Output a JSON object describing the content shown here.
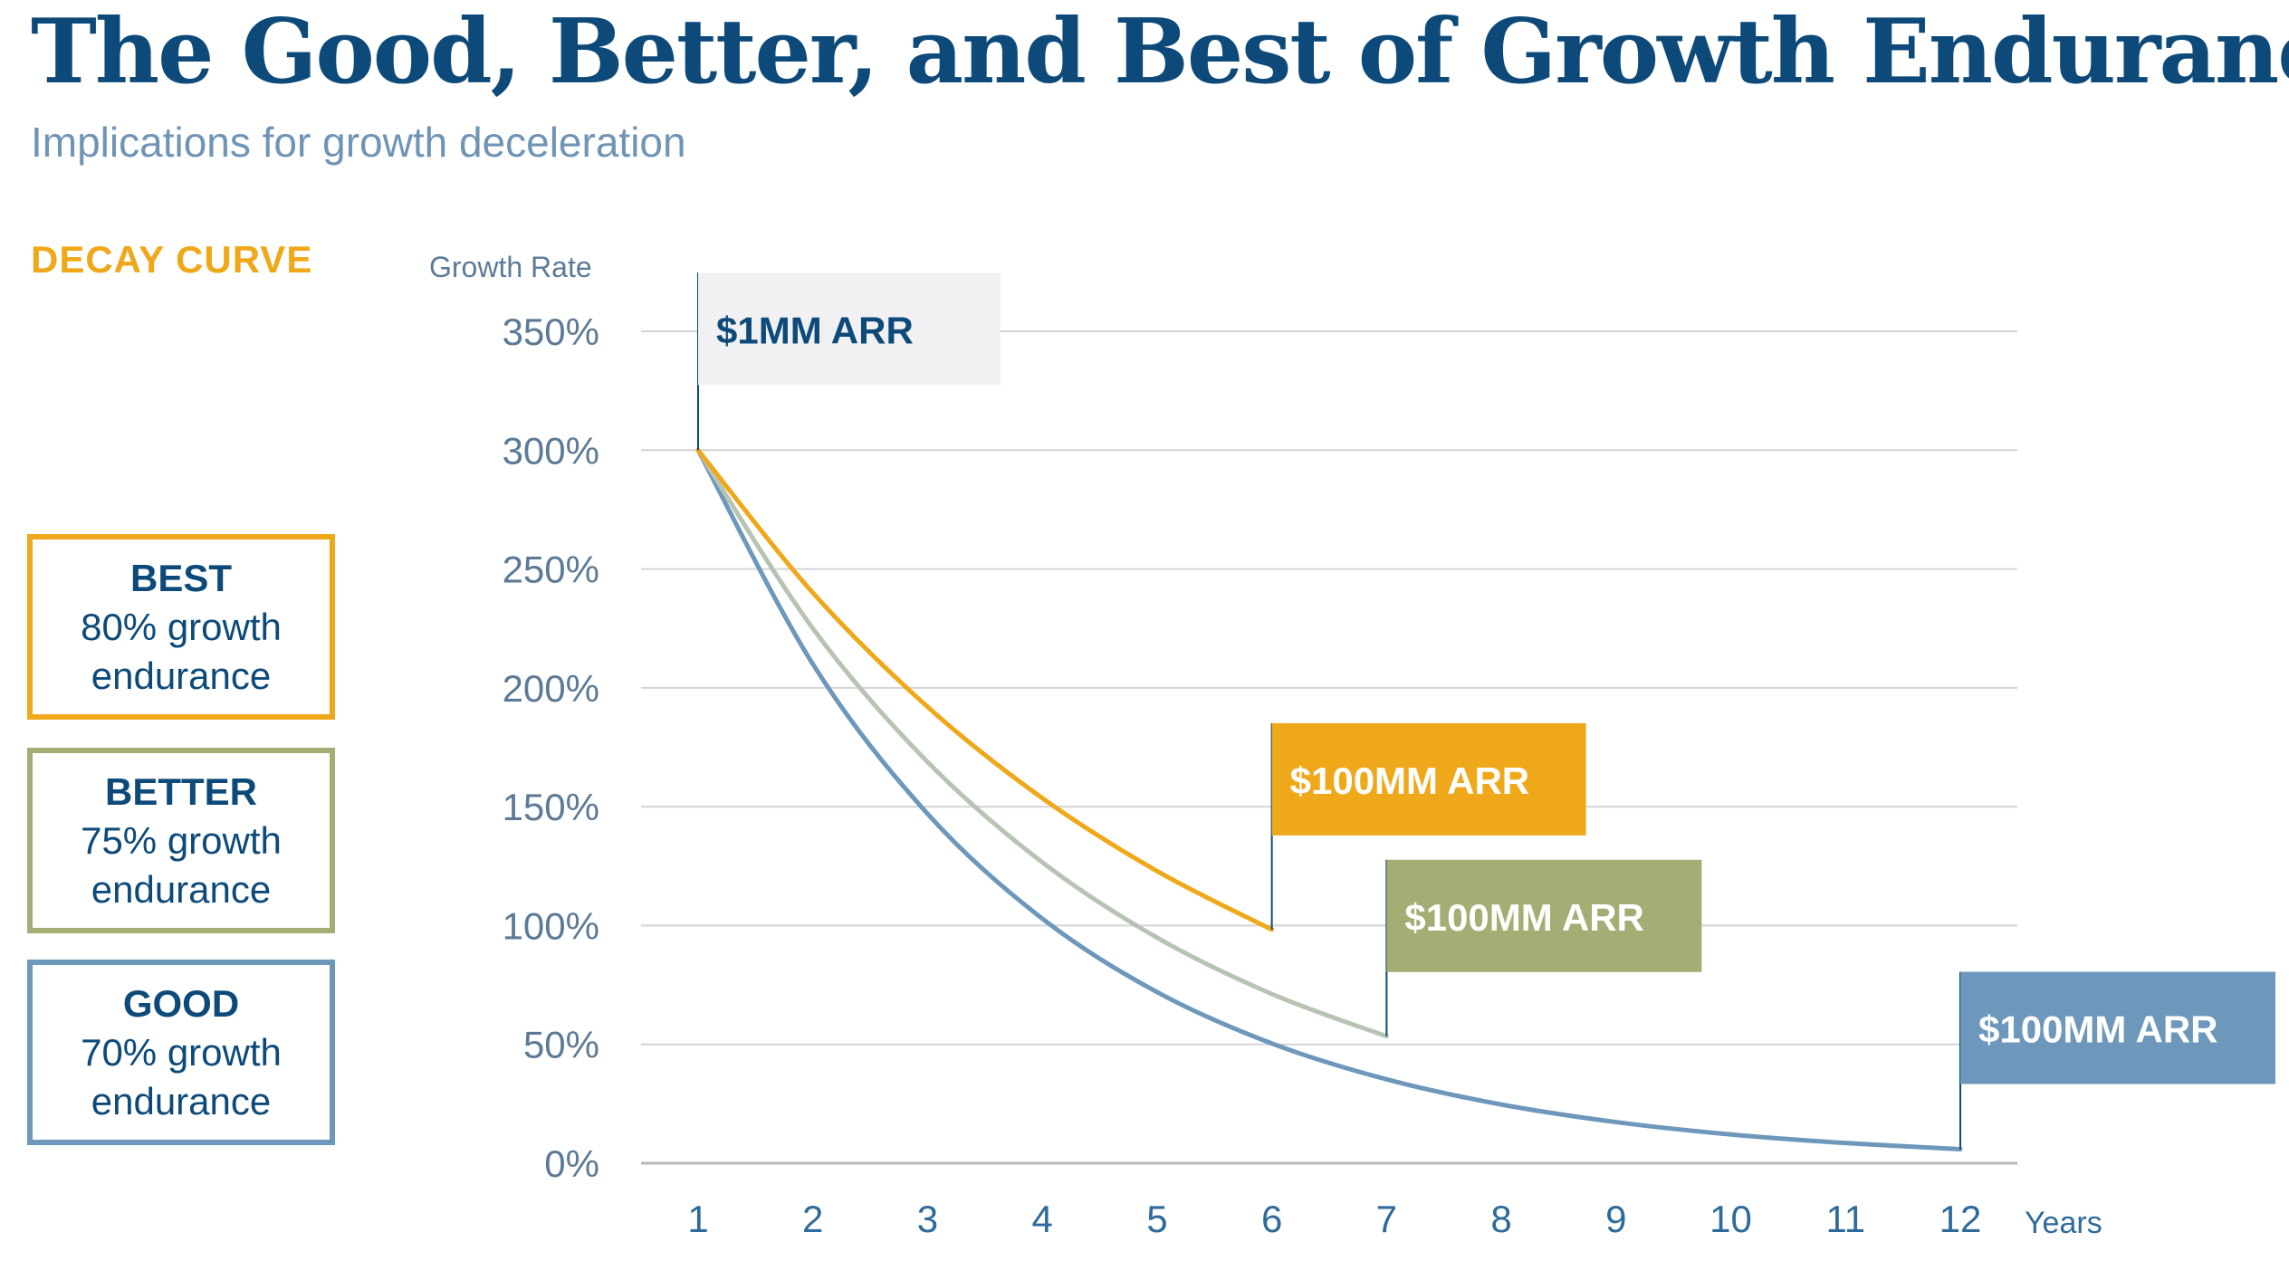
{
  "title": "The Good, Better, and Best of Growth Endurance",
  "subtitle": "Implications for growth deceleration",
  "decay_label": "DECAY CURVE",
  "legend": [
    {
      "name": "BEST",
      "line1": "80% growth",
      "line2": "endurance",
      "color": "#efa81a"
    },
    {
      "name": "BETTER",
      "line1": "75% growth",
      "line2": "endurance",
      "color": "#a3ad74"
    },
    {
      "name": "GOOD",
      "line1": "70% growth",
      "line2": "endurance",
      "color": "#6d98bb"
    }
  ],
  "chart_data": {
    "type": "line",
    "ylabel": "Growth Rate",
    "xlabel": "Years",
    "y_ticks": [
      "0%",
      "50%",
      "100%",
      "150%",
      "200%",
      "250%",
      "300%",
      "350%"
    ],
    "x_ticks": [
      "1",
      "2",
      "3",
      "4",
      "5",
      "6",
      "7",
      "8",
      "9",
      "10",
      "11",
      "12"
    ],
    "ylim": [
      0,
      350
    ],
    "xlim": [
      1,
      12
    ],
    "grid": true,
    "series": [
      {
        "name": "BEST",
        "color": "#efa81a",
        "x": [
          1,
          2,
          3,
          4,
          5,
          6
        ],
        "y": [
          300,
          240,
          192,
          153.6,
          122.9,
          98.3
        ]
      },
      {
        "name": "BETTER",
        "color": "#b7c4b4",
        "x": [
          1,
          2,
          3,
          4,
          5,
          6,
          7
        ],
        "y": [
          300,
          225,
          168.8,
          126.6,
          94.9,
          71.2,
          53.4
        ]
      },
      {
        "name": "GOOD",
        "color": "#6d98bb",
        "x": [
          1,
          2,
          3,
          4,
          5,
          6,
          7,
          8,
          9,
          10,
          11,
          12
        ],
        "y": [
          300,
          210,
          147,
          102.9,
          72,
          50.4,
          35.3,
          24.7,
          17.3,
          12.1,
          8.5,
          5.9
        ]
      }
    ],
    "annotations": [
      {
        "label": "$1MM ARR",
        "x": 1,
        "y": 300,
        "bg": "#f1f1f3",
        "fg": "#0d4a79"
      },
      {
        "label": "$100MM ARR",
        "x": 6,
        "y": 98.3,
        "bg": "#efa81a",
        "fg": "#ffffff"
      },
      {
        "label": "$100MM ARR",
        "x": 7,
        "y": 53.4,
        "bg": "#a3ad74",
        "fg": "#ffffff"
      },
      {
        "label": "$100MM ARR",
        "x": 12,
        "y": 5.9,
        "bg": "#6d98bb",
        "fg": "#ffffff"
      }
    ]
  }
}
